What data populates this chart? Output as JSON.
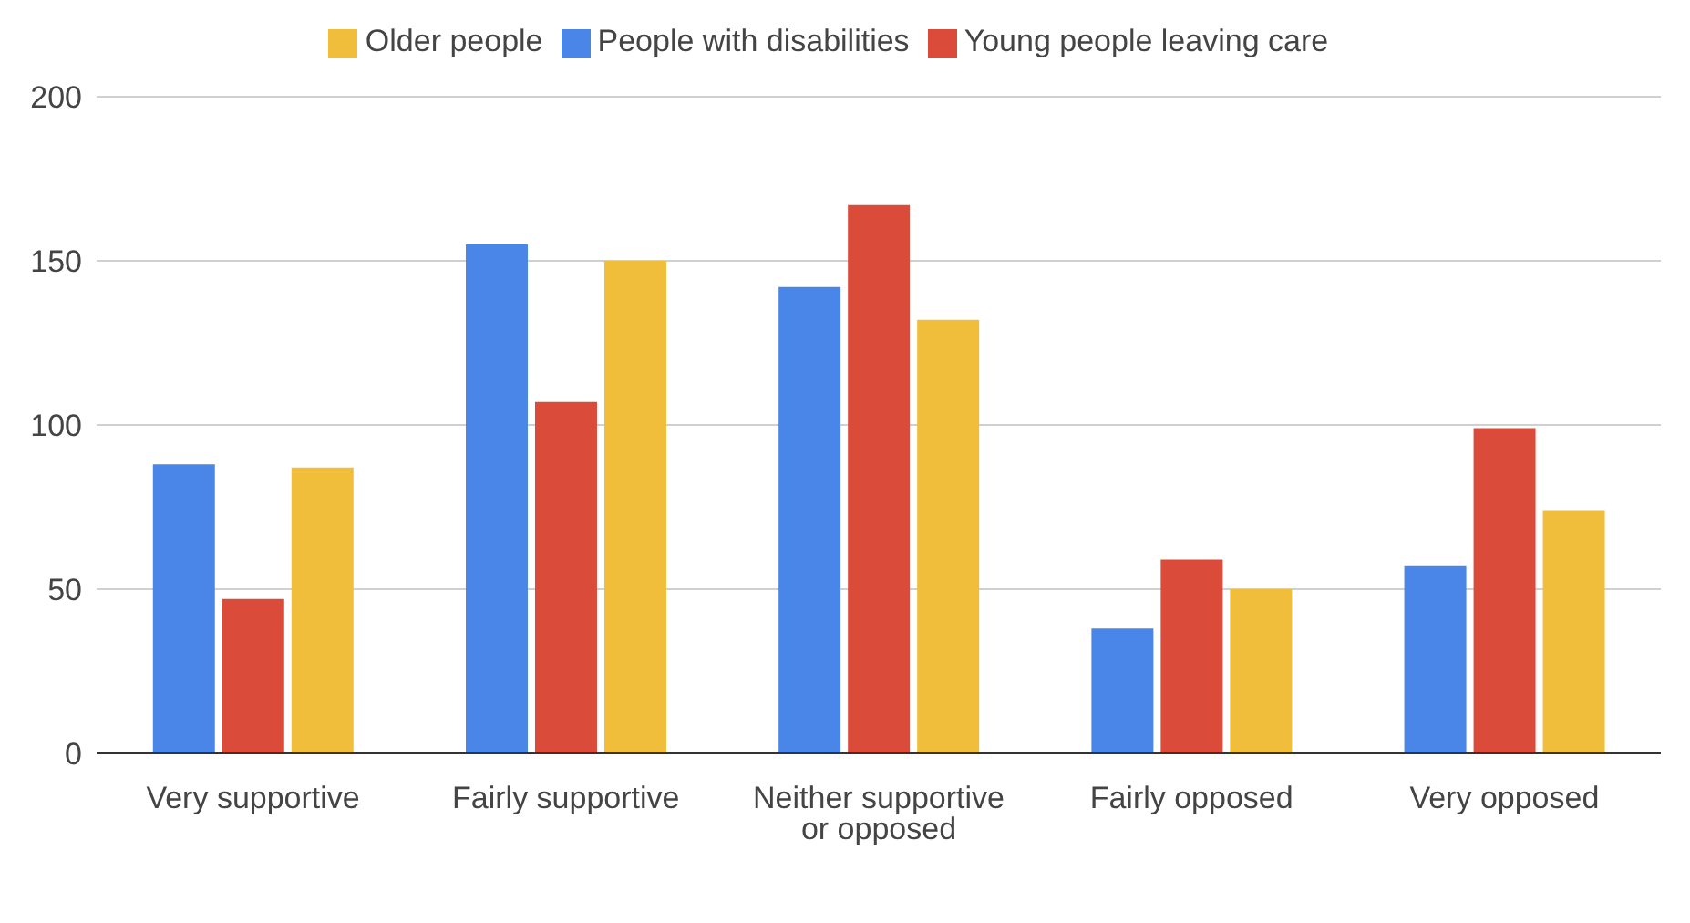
{
  "chart_data": {
    "type": "bar",
    "categories": [
      "Very supportive",
      "Fairly supportive",
      "Neither supportive or opposed",
      "Fairly opposed",
      "Very opposed"
    ],
    "series": [
      {
        "name": "People with disabilities",
        "color": "#4a86e8",
        "values": [
          88,
          155,
          142,
          38,
          57
        ]
      },
      {
        "name": "Young people leaving care",
        "color": "#db4b3a",
        "values": [
          47,
          107,
          167,
          59,
          99
        ]
      },
      {
        "name": "Older people",
        "color": "#f1be3c",
        "values": [
          87,
          150,
          132,
          50,
          74
        ]
      }
    ],
    "ylim": [
      0,
      200
    ],
    "yticks": [
      0,
      50,
      100,
      150,
      200
    ],
    "grid": "y",
    "legend": "top"
  }
}
